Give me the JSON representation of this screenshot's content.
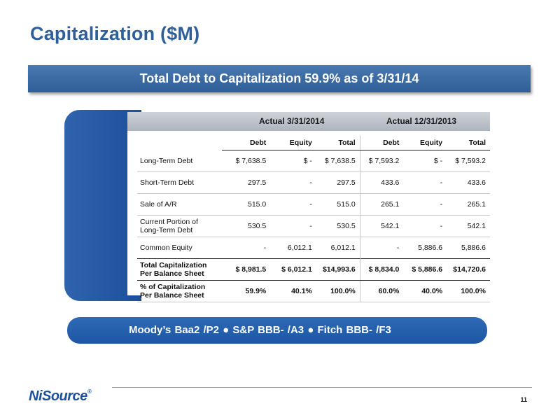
{
  "title": "Capitalization ($M)",
  "banner": "Total Debt to Capitalization 59.9% as of 3/31/14",
  "table": {
    "group_headers": [
      "Actual 3/31/2014",
      "Actual 12/31/2013"
    ],
    "columns": [
      "Debt",
      "Equity",
      "Total",
      "Debt",
      "Equity",
      "Total"
    ],
    "rows": [
      {
        "label": "Long-Term Debt",
        "values": [
          "$ 7,638.5",
          "$ -",
          "$ 7,638.5",
          "$ 7,593.2",
          "$ -",
          "$ 7,593.2"
        ]
      },
      {
        "label": "Short-Term Debt",
        "values": [
          "297.5",
          "-",
          "297.5",
          "433.6",
          "-",
          "433.6"
        ]
      },
      {
        "label": "Sale of A/R",
        "values": [
          "515.0",
          "-",
          "515.0",
          "265.1",
          "-",
          "265.1"
        ]
      },
      {
        "label": "Current Portion of Long-Term Debt",
        "values": [
          "530.5",
          "-",
          "530.5",
          "542.1",
          "-",
          "542.1"
        ]
      },
      {
        "label": "Common Equity",
        "values": [
          "-",
          "6,012.1",
          "6,012.1",
          "-",
          "5,886.6",
          "5,886.6"
        ]
      },
      {
        "label": "Total Capitalization Per Balance Sheet",
        "values": [
          "$ 8,981.5",
          "$ 6,012.1",
          "$14,993.6",
          "$ 8,834.0",
          "$ 5,886.6",
          "$14,720.6"
        ]
      },
      {
        "label": "% of Capitalization Per Balance Sheet",
        "values": [
          "59.9%",
          "40.1%",
          "100.0%",
          "60.0%",
          "40.0%",
          "100.0%"
        ]
      }
    ]
  },
  "ratings": "Moody’s Baa2 /P2   ●   S&P BBB- /A3   ●   Fitch BBB- /F3",
  "logo": "NiSource",
  "page_number": "11"
}
